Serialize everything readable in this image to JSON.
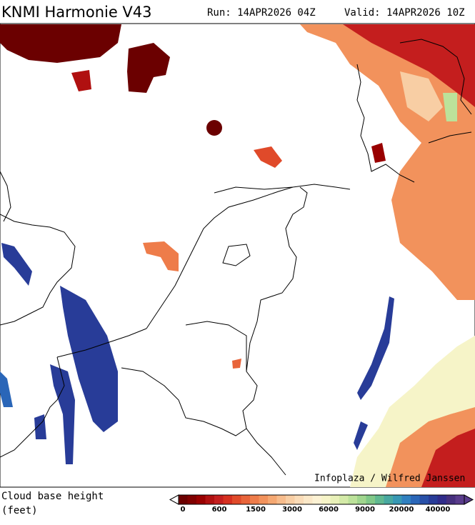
{
  "header": {
    "title": "KNMI Harmonie V43",
    "run": "Run: 14APR2026 04Z",
    "valid": "Valid: 14APR2026 10Z"
  },
  "credit": "Infoplaza / Wilfred Janssen",
  "legend": {
    "title_lines": [
      "Cloud base height",
      "(feet)"
    ],
    "ticks": [
      "0",
      "600",
      "1500",
      "3000",
      "6000",
      "9000",
      "20000",
      "40000"
    ],
    "colors": [
      "#6b0000",
      "#800000",
      "#990000",
      "#b01010",
      "#c41e1e",
      "#d63020",
      "#e04a2a",
      "#e8643a",
      "#ee7c4a",
      "#f2925c",
      "#f5a872",
      "#f7bc8c",
      "#f8cea4",
      "#fadcb8",
      "#fbe8c8",
      "#fcf2d4",
      "#f6f4c8",
      "#e8f0b8",
      "#d4eaa8",
      "#bce29a",
      "#a0d68e",
      "#80c888",
      "#60b890",
      "#48a8a0",
      "#3898b4",
      "#3080c0",
      "#2a66b8",
      "#2850a8",
      "#283c98",
      "#302c8a",
      "#46307e",
      "#5a3c8c"
    ]
  }
}
